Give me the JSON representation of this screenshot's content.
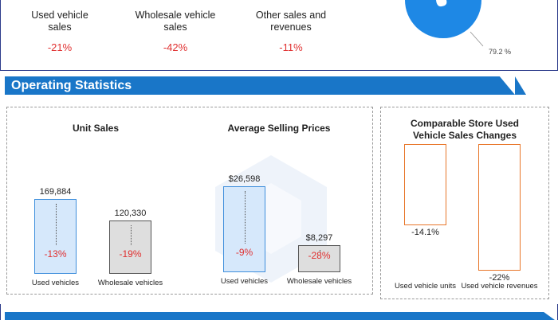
{
  "top_stats": [
    {
      "label_line1": "Used vehicle",
      "label_line2": "sales",
      "pct": "-21%"
    },
    {
      "label_line1": "Wholesale vehicle",
      "label_line2": "sales",
      "pct": "-42%"
    },
    {
      "label_line1": "Other sales and",
      "label_line2": "revenues",
      "pct": "-11%"
    }
  ],
  "pie_label": "79.2 %",
  "section_title": "Operating Statistics",
  "colors": {
    "banner": "#1976c8",
    "light_blue_bar": "#d6e8fb",
    "light_blue_border": "#3f8fdc",
    "gray_bar": "#dedede",
    "gray_border": "#555555",
    "orange": "#e8762a",
    "negative": "#e03030"
  },
  "chart_data": [
    {
      "type": "bar",
      "title": "Unit Sales",
      "categories": [
        "Used vehicles",
        "Wholesale vehicles"
      ],
      "values": [
        169884,
        120330
      ],
      "value_labels": [
        "169,884",
        "120,330"
      ],
      "changes": [
        "-13%",
        "-19%"
      ]
    },
    {
      "type": "bar",
      "title": "Average Selling Prices",
      "categories": [
        "Used vehicles",
        "Wholesale vehicles"
      ],
      "values": [
        26598,
        8297
      ],
      "value_labels": [
        "$26,598",
        "$8,297"
      ],
      "changes": [
        "-9%",
        "-28%"
      ]
    },
    {
      "type": "bar",
      "title_line1": "Comparable Store Used",
      "title_line2": "Vehicle Sales Changes",
      "categories": [
        "Used vehicle units",
        "Used vehicle revenues"
      ],
      "values": [
        -14.1,
        -22
      ],
      "value_labels": [
        "-14.1%",
        "-22%"
      ],
      "ylim": [
        -22,
        0
      ]
    }
  ]
}
